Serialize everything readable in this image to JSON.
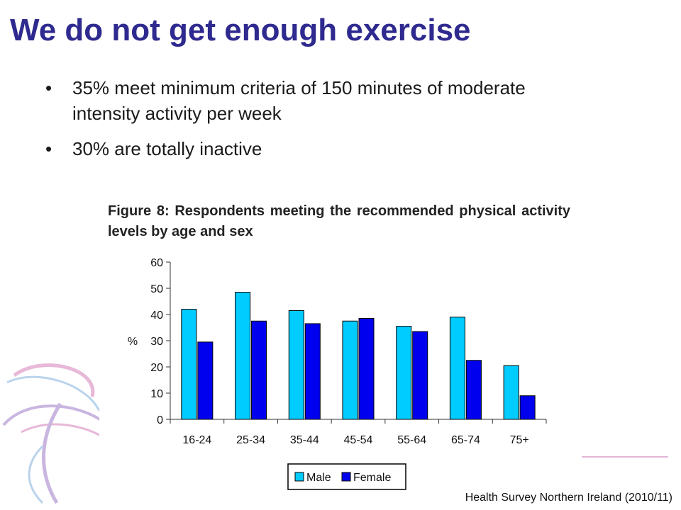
{
  "slide": {
    "title": "We do not get enough exercise",
    "bullets": [
      "35% meet minimum criteria of 150 minutes of moderate intensity activity per week",
      "30% are totally inactive"
    ],
    "source": "Health Survey Northern Ireland (2010/11)"
  },
  "chart_data": {
    "type": "bar",
    "title": "Figure 8: Respondents meeting the recommended physical activity levels by age and sex",
    "xlabel": "",
    "ylabel": "%",
    "categories": [
      "16-24",
      "25-34",
      "35-44",
      "45-54",
      "55-64",
      "65-74",
      "75+"
    ],
    "series": [
      {
        "name": "Male",
        "color": "#00ccff",
        "values": [
          42,
          48.5,
          41.5,
          37.5,
          35.5,
          39,
          20.5
        ]
      },
      {
        "name": "Female",
        "color": "#0000ee",
        "values": [
          29.5,
          37.5,
          36.5,
          38.5,
          33.5,
          22.5,
          9
        ]
      }
    ],
    "ylim": [
      0,
      60
    ],
    "yticks": [
      0,
      10,
      20,
      30,
      40,
      50,
      60
    ],
    "grid": false,
    "legend": "bottom"
  }
}
